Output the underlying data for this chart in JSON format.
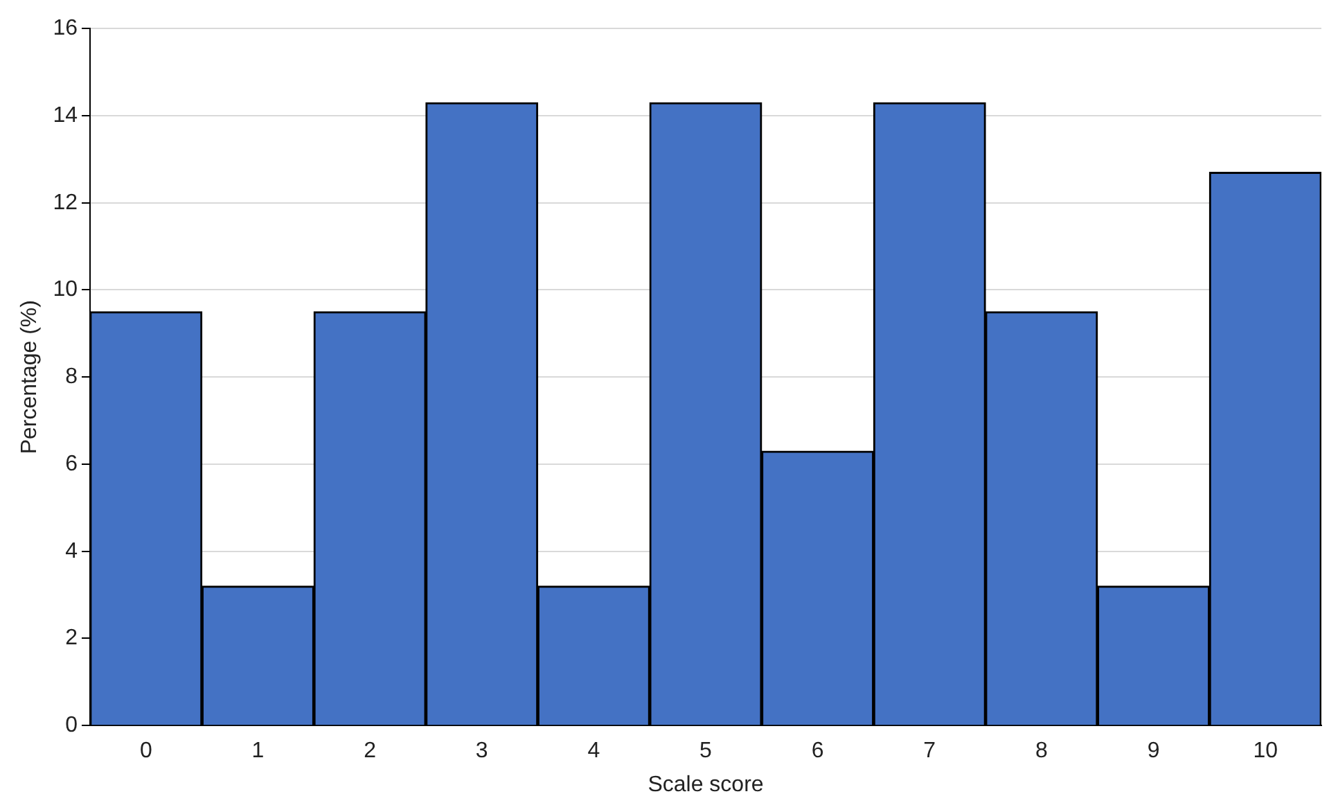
{
  "chart_data": {
    "type": "bar",
    "xlabel": "Scale score",
    "ylabel": "Percentage (%)",
    "categories": [
      "0",
      "1",
      "2",
      "3",
      "4",
      "5",
      "6",
      "7",
      "8",
      "9",
      "10"
    ],
    "values": [
      9.5,
      3.2,
      9.5,
      14.3,
      3.2,
      14.3,
      6.3,
      14.3,
      9.5,
      3.2,
      12.7
    ],
    "color": "#4472c4",
    "ylim": [
      0,
      16
    ],
    "yticks": [
      0,
      2,
      4,
      6,
      8,
      10,
      12,
      14,
      16
    ],
    "grid": "y"
  }
}
